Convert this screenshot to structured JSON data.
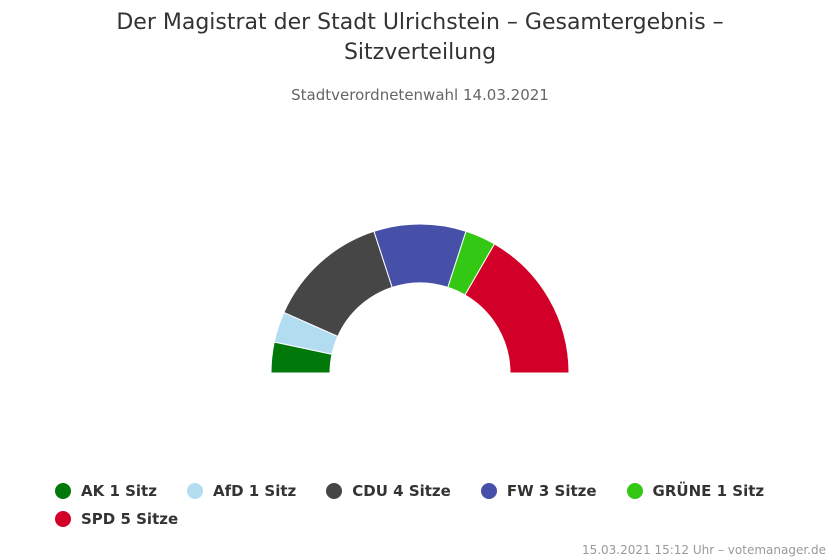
{
  "title": "Der Magistrat der Stadt Ulrichstein – Gesamtergebnis – Sitzverteilung",
  "subtitle": "Stadtverordnetenwahl 14.03.2021",
  "credits": "15.03.2021 15:12 Uhr – votemanager.de",
  "chart_data": {
    "type": "pie",
    "variant": "semicircle-donut",
    "categories": [
      "AK",
      "AfD",
      "CDU",
      "FW",
      "GRÜNE",
      "SPD"
    ],
    "values": [
      1,
      1,
      4,
      3,
      1,
      5
    ],
    "colors": [
      "#00780a",
      "#b2dcf0",
      "#464646",
      "#4650a8",
      "#32c814",
      "#d20028"
    ],
    "legend": [
      {
        "label": "AK 1 Sitz",
        "color": "#00780a"
      },
      {
        "label": "AfD 1 Sitz",
        "color": "#b2dcf0"
      },
      {
        "label": "CDU 4 Sitze",
        "color": "#464646"
      },
      {
        "label": "FW 3 Sitze",
        "color": "#4650a8"
      },
      {
        "label": "GRÜNE 1 Sitz",
        "color": "#32c814"
      },
      {
        "label": "SPD 5 Sitze",
        "color": "#d20028"
      }
    ],
    "legend_position": "bottom"
  }
}
